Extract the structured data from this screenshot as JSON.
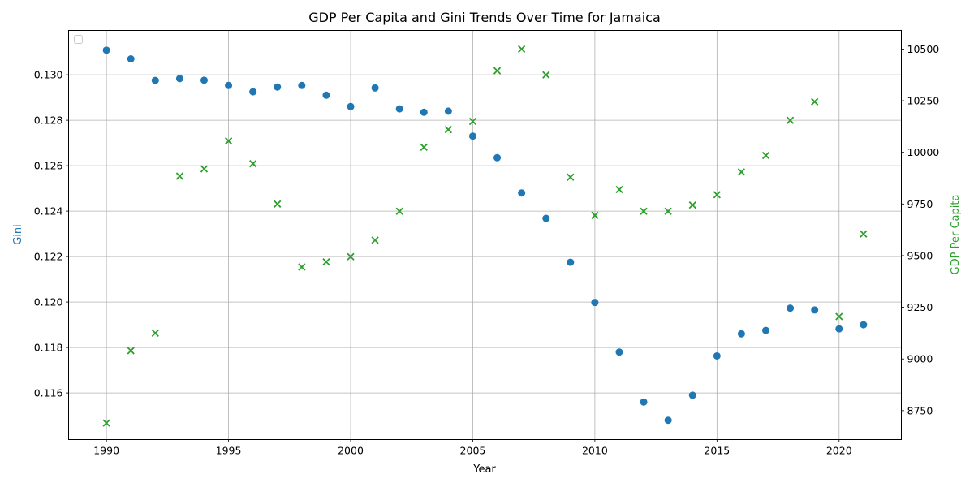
{
  "chart_data": {
    "type": "scatter",
    "title": "GDP Per Capita and Gini Trends Over Time for Jamaica",
    "xlabel": "Year",
    "ylabel_left": "Gini",
    "ylabel_right": "GDP Per Capita",
    "xlim": [
      1988.45,
      2022.55
    ],
    "ylim_left": [
      0.11395,
      0.13195
    ],
    "ylim_right": [
      8610,
      10590
    ],
    "x_ticks": [
      1990,
      1995,
      2000,
      2005,
      2010,
      2015,
      2020
    ],
    "y_left_ticks": [
      0.116,
      0.118,
      0.12,
      0.122,
      0.124,
      0.126,
      0.128,
      0.13
    ],
    "y_left_tick_labels": [
      "0.116",
      "0.118",
      "0.120",
      "0.122",
      "0.124",
      "0.126",
      "0.128",
      "0.130"
    ],
    "y_right_ticks": [
      8750,
      9000,
      9250,
      9500,
      9750,
      10000,
      10250,
      10500
    ],
    "grid": true,
    "legend": "upper-left (empty)",
    "colors": {
      "gini": "#1f77b4",
      "gdp": "#2ca02c"
    },
    "x": [
      1990,
      1991,
      1992,
      1993,
      1994,
      1995,
      1996,
      1997,
      1998,
      1999,
      2000,
      2001,
      2002,
      2003,
      2004,
      2005,
      2006,
      2007,
      2008,
      2009,
      2010,
      2011,
      2012,
      2013,
      2014,
      2015,
      2016,
      2017,
      2018,
      2019,
      2020,
      2021
    ],
    "series": [
      {
        "axis": "left",
        "marker": "circle",
        "values": [
          0.13108,
          0.1307,
          0.12975,
          0.12983,
          0.12976,
          0.12953,
          0.12925,
          0.12946,
          0.12953,
          0.1291,
          0.1286,
          0.12942,
          0.1285,
          0.12835,
          0.1284,
          0.1273,
          0.12635,
          0.1248,
          0.12368,
          0.12175,
          0.11998,
          0.1178,
          0.1156,
          0.1148,
          0.1159,
          0.11763,
          0.1186,
          0.11875,
          0.11973,
          0.11965,
          0.11882,
          0.119
        ]
      },
      {
        "axis": "right",
        "marker": "x",
        "values": [
          8690,
          9040,
          9125,
          9885,
          9920,
          10055,
          9945,
          9750,
          9445,
          9470,
          9495,
          9575,
          9715,
          10025,
          10110,
          10150,
          10395,
          10500,
          10375,
          9880,
          9695,
          9820,
          9715,
          9715,
          9745,
          9795,
          9905,
          9985,
          10155,
          10245,
          9205,
          9605
        ]
      }
    ]
  }
}
